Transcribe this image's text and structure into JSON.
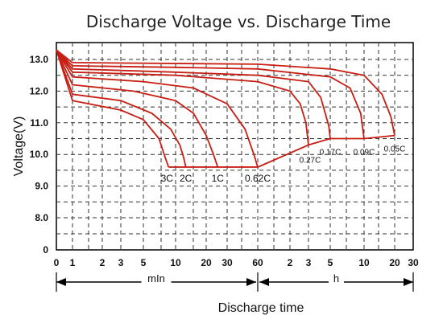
{
  "chart_data": {
    "type": "line",
    "title": "Discharge Voltage vs. Discharge Time",
    "xlabel": "Discharge time",
    "ylabel": "Voltage(V)",
    "x_units": [
      {
        "label": "mIn",
        "from": "0",
        "to": "60"
      },
      {
        "label": "h",
        "from": "1",
        "to": "30"
      }
    ],
    "x_ticks": [
      "0",
      "1",
      "2",
      "3",
      "5",
      "10",
      "20",
      "30",
      "60",
      "2",
      "3",
      "5",
      "10",
      "20",
      "30"
    ],
    "y_ticks": [
      "0",
      "8.0",
      "9.0",
      "10.0",
      "11.0",
      "12.0",
      "13.0"
    ],
    "ylim": [
      0,
      13.5
    ],
    "x_scale": "log",
    "grid": true,
    "series": [
      {
        "name": "3C",
        "points": [
          [
            0,
            13.3
          ],
          [
            1,
            11.7
          ],
          [
            3,
            11.4
          ],
          [
            5,
            11.1
          ],
          [
            7,
            10.5
          ],
          [
            8,
            9.9
          ],
          [
            8.6,
            9.6
          ]
        ]
      },
      {
        "name": "2C",
        "points": [
          [
            0,
            13.3
          ],
          [
            1,
            11.9
          ],
          [
            3,
            11.7
          ],
          [
            6,
            11.3
          ],
          [
            9,
            10.8
          ],
          [
            11,
            10.3
          ],
          [
            12,
            9.9
          ],
          [
            12.6,
            9.6
          ]
        ]
      },
      {
        "name": "1C",
        "points": [
          [
            0,
            13.3
          ],
          [
            1,
            12.2
          ],
          [
            4,
            12.0
          ],
          [
            10,
            11.7
          ],
          [
            15,
            11.3
          ],
          [
            20,
            10.6
          ],
          [
            23,
            10.0
          ],
          [
            25,
            9.6
          ]
        ]
      },
      {
        "name": "0.62C",
        "points": [
          [
            0,
            13.3
          ],
          [
            1,
            12.45
          ],
          [
            5,
            12.3
          ],
          [
            15,
            12.1
          ],
          [
            30,
            11.6
          ],
          [
            45,
            10.8
          ],
          [
            55,
            10.0
          ],
          [
            60,
            9.6
          ]
        ]
      },
      {
        "name": "0.27C",
        "points": [
          [
            0,
            13.3
          ],
          [
            1,
            12.6
          ],
          [
            10,
            12.5
          ],
          [
            60,
            12.3
          ],
          [
            120,
            12.0
          ],
          [
            150,
            11.6
          ],
          [
            170,
            11.0
          ],
          [
            180,
            10.3
          ]
        ]
      },
      {
        "name": "0.17C",
        "points": [
          [
            0,
            13.3
          ],
          [
            1,
            12.7
          ],
          [
            10,
            12.6
          ],
          [
            60,
            12.5
          ],
          [
            180,
            12.3
          ],
          [
            240,
            11.8
          ],
          [
            290,
            10.9
          ],
          [
            300,
            10.5
          ]
        ]
      },
      {
        "name": "0.09C",
        "points": [
          [
            0,
            13.3
          ],
          [
            1,
            12.8
          ],
          [
            10,
            12.75
          ],
          [
            60,
            12.7
          ],
          [
            300,
            12.45
          ],
          [
            450,
            12.1
          ],
          [
            560,
            11.3
          ],
          [
            600,
            10.5
          ]
        ]
      },
      {
        "name": "0.05C",
        "points": [
          [
            0,
            13.3
          ],
          [
            1,
            12.9
          ],
          [
            60,
            12.85
          ],
          [
            300,
            12.7
          ],
          [
            600,
            12.5
          ],
          [
            900,
            11.9
          ],
          [
            1100,
            11.2
          ],
          [
            1200,
            10.6
          ]
        ]
      }
    ],
    "legend": "none",
    "color": "#c81e14"
  }
}
